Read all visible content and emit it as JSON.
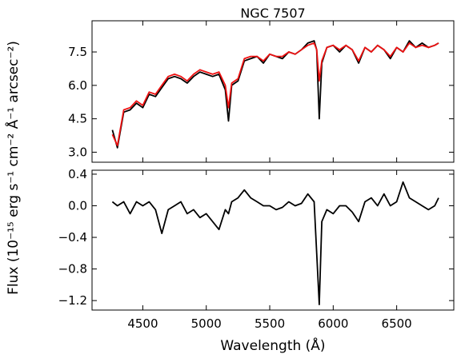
{
  "chart_data": [
    {
      "type": "line",
      "title": "NGC 7507",
      "ylabel": "Flux (10⁻¹⁵ erg s⁻¹ cm⁻² Å⁻¹ arcsec⁻²)",
      "x": [
        4260,
        4300,
        4350,
        4400,
        4450,
        4500,
        4550,
        4600,
        4650,
        4700,
        4750,
        4800,
        4850,
        4900,
        4950,
        5000,
        5050,
        5100,
        5150,
        5175,
        5200,
        5250,
        5300,
        5350,
        5400,
        5450,
        5500,
        5550,
        5600,
        5650,
        5700,
        5750,
        5800,
        5850,
        5870,
        5890,
        5910,
        5950,
        6000,
        6050,
        6100,
        6150,
        6200,
        6250,
        6300,
        6350,
        6400,
        6450,
        6500,
        6550,
        6600,
        6650,
        6700,
        6750,
        6800,
        6830
      ],
      "series": [
        {
          "color": "#000000",
          "values": [
            4.0,
            3.2,
            4.8,
            4.9,
            5.2,
            5.0,
            5.6,
            5.5,
            5.9,
            6.3,
            6.4,
            6.3,
            6.1,
            6.4,
            6.6,
            6.5,
            6.4,
            6.5,
            5.8,
            4.4,
            6.0,
            6.2,
            7.1,
            7.2,
            7.3,
            7.0,
            7.4,
            7.3,
            7.2,
            7.5,
            7.4,
            7.6,
            7.9,
            8.0,
            7.6,
            4.5,
            7.0,
            7.7,
            7.8,
            7.5,
            7.8,
            7.6,
            7.0,
            7.7,
            7.5,
            7.8,
            7.6,
            7.2,
            7.7,
            7.5,
            8.0,
            7.7,
            7.9,
            7.7,
            7.8,
            7.9
          ]
        },
        {
          "color": "#ee1111",
          "values": [
            3.8,
            3.3,
            4.9,
            5.0,
            5.3,
            5.1,
            5.7,
            5.6,
            6.0,
            6.4,
            6.5,
            6.4,
            6.2,
            6.5,
            6.7,
            6.6,
            6.5,
            6.6,
            6.0,
            5.0,
            6.1,
            6.3,
            7.2,
            7.3,
            7.3,
            7.1,
            7.4,
            7.3,
            7.3,
            7.5,
            7.4,
            7.6,
            7.8,
            7.9,
            7.6,
            6.2,
            7.1,
            7.7,
            7.8,
            7.6,
            7.8,
            7.6,
            7.1,
            7.7,
            7.5,
            7.8,
            7.6,
            7.3,
            7.7,
            7.5,
            7.9,
            7.7,
            7.8,
            7.7,
            7.8,
            7.9
          ]
        }
      ],
      "xlim": [
        4100,
        6950
      ],
      "xticks": [
        4500,
        5000,
        5500,
        6000,
        6500
      ],
      "ylim": [
        2.55,
        8.9
      ],
      "yticks": [
        {
          "value": 3,
          "label": "3.0"
        },
        {
          "value": 4.5,
          "label": "4.5"
        },
        {
          "value": 6,
          "label": "6.0"
        },
        {
          "value": 7.5,
          "label": "7.5"
        }
      ]
    },
    {
      "type": "line",
      "xlabel": "Wavelength (Å)",
      "x": [
        4260,
        4300,
        4350,
        4400,
        4450,
        4500,
        4550,
        4600,
        4650,
        4700,
        4750,
        4800,
        4850,
        4900,
        4950,
        5000,
        5050,
        5100,
        5150,
        5175,
        5200,
        5250,
        5300,
        5350,
        5400,
        5450,
        5500,
        5550,
        5600,
        5650,
        5700,
        5750,
        5800,
        5850,
        5870,
        5890,
        5910,
        5950,
        6000,
        6050,
        6100,
        6150,
        6200,
        6250,
        6300,
        6350,
        6400,
        6450,
        6500,
        6550,
        6600,
        6650,
        6700,
        6750,
        6800,
        6830
      ],
      "series": [
        {
          "color": "#000000",
          "values": [
            0.05,
            0.0,
            0.05,
            -0.1,
            0.05,
            0.0,
            0.05,
            -0.05,
            -0.35,
            -0.05,
            0.0,
            0.05,
            -0.1,
            -0.05,
            -0.15,
            -0.1,
            -0.2,
            -0.3,
            -0.05,
            -0.1,
            0.05,
            0.1,
            0.2,
            0.1,
            0.05,
            0.0,
            0.0,
            -0.05,
            -0.02,
            0.05,
            0.0,
            0.03,
            0.15,
            0.05,
            -0.6,
            -1.25,
            -0.2,
            -0.05,
            -0.1,
            0.0,
            0.0,
            -0.08,
            -0.2,
            0.05,
            0.1,
            0.0,
            0.15,
            0.0,
            0.05,
            0.3,
            0.1,
            0.05,
            0.0,
            -0.05,
            0.0,
            0.1
          ]
        }
      ],
      "xlim": [
        4100,
        6950
      ],
      "xticks": [
        {
          "value": 4500,
          "label": "4500"
        },
        {
          "value": 5000,
          "label": "5000"
        },
        {
          "value": 5500,
          "label": "5500"
        },
        {
          "value": 6000,
          "label": "6000"
        },
        {
          "value": 6500,
          "label": "6500"
        }
      ],
      "ylim": [
        -1.32,
        0.45
      ],
      "yticks": [
        0.4,
        {
          "value": 0,
          "label": "0.0"
        },
        {
          "value": -0.4,
          "label": "−0.4"
        },
        {
          "value": -0.8,
          "label": "−0.8"
        },
        {
          "value": -1.2,
          "label": "−1.2"
        }
      ]
    }
  ]
}
